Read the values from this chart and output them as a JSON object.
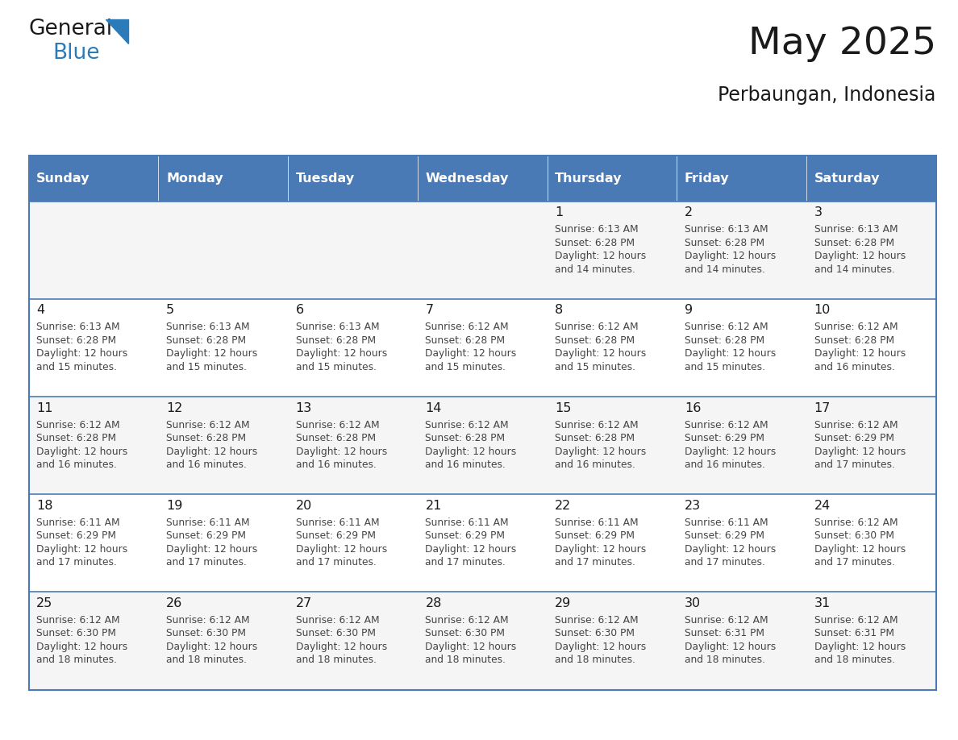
{
  "title": "May 2025",
  "subtitle": "Perbaungan, Indonesia",
  "days_of_week": [
    "Sunday",
    "Monday",
    "Tuesday",
    "Wednesday",
    "Thursday",
    "Friday",
    "Saturday"
  ],
  "header_bg": "#4a7ab5",
  "header_text": "#FFFFFF",
  "row_bg_odd": "#f5f5f5",
  "row_bg_even": "#FFFFFF",
  "border_color": "#4a7ab5",
  "text_color": "#444444",
  "day_num_color": "#1a1a1a",
  "cal_data": [
    [
      null,
      null,
      null,
      null,
      {
        "day": 1,
        "sunrise": "6:13 AM",
        "sunset": "6:28 PM",
        "daylight": "12 hours",
        "daylight2": "and 14 minutes."
      },
      {
        "day": 2,
        "sunrise": "6:13 AM",
        "sunset": "6:28 PM",
        "daylight": "12 hours",
        "daylight2": "and 14 minutes."
      },
      {
        "day": 3,
        "sunrise": "6:13 AM",
        "sunset": "6:28 PM",
        "daylight": "12 hours",
        "daylight2": "and 14 minutes."
      }
    ],
    [
      {
        "day": 4,
        "sunrise": "6:13 AM",
        "sunset": "6:28 PM",
        "daylight": "12 hours",
        "daylight2": "and 15 minutes."
      },
      {
        "day": 5,
        "sunrise": "6:13 AM",
        "sunset": "6:28 PM",
        "daylight": "12 hours",
        "daylight2": "and 15 minutes."
      },
      {
        "day": 6,
        "sunrise": "6:13 AM",
        "sunset": "6:28 PM",
        "daylight": "12 hours",
        "daylight2": "and 15 minutes."
      },
      {
        "day": 7,
        "sunrise": "6:12 AM",
        "sunset": "6:28 PM",
        "daylight": "12 hours",
        "daylight2": "and 15 minutes."
      },
      {
        "day": 8,
        "sunrise": "6:12 AM",
        "sunset": "6:28 PM",
        "daylight": "12 hours",
        "daylight2": "and 15 minutes."
      },
      {
        "day": 9,
        "sunrise": "6:12 AM",
        "sunset": "6:28 PM",
        "daylight": "12 hours",
        "daylight2": "and 15 minutes."
      },
      {
        "day": 10,
        "sunrise": "6:12 AM",
        "sunset": "6:28 PM",
        "daylight": "12 hours",
        "daylight2": "and 16 minutes."
      }
    ],
    [
      {
        "day": 11,
        "sunrise": "6:12 AM",
        "sunset": "6:28 PM",
        "daylight": "12 hours",
        "daylight2": "and 16 minutes."
      },
      {
        "day": 12,
        "sunrise": "6:12 AM",
        "sunset": "6:28 PM",
        "daylight": "12 hours",
        "daylight2": "and 16 minutes."
      },
      {
        "day": 13,
        "sunrise": "6:12 AM",
        "sunset": "6:28 PM",
        "daylight": "12 hours",
        "daylight2": "and 16 minutes."
      },
      {
        "day": 14,
        "sunrise": "6:12 AM",
        "sunset": "6:28 PM",
        "daylight": "12 hours",
        "daylight2": "and 16 minutes."
      },
      {
        "day": 15,
        "sunrise": "6:12 AM",
        "sunset": "6:28 PM",
        "daylight": "12 hours",
        "daylight2": "and 16 minutes."
      },
      {
        "day": 16,
        "sunrise": "6:12 AM",
        "sunset": "6:29 PM",
        "daylight": "12 hours",
        "daylight2": "and 16 minutes."
      },
      {
        "day": 17,
        "sunrise": "6:12 AM",
        "sunset": "6:29 PM",
        "daylight": "12 hours",
        "daylight2": "and 17 minutes."
      }
    ],
    [
      {
        "day": 18,
        "sunrise": "6:11 AM",
        "sunset": "6:29 PM",
        "daylight": "12 hours",
        "daylight2": "and 17 minutes."
      },
      {
        "day": 19,
        "sunrise": "6:11 AM",
        "sunset": "6:29 PM",
        "daylight": "12 hours",
        "daylight2": "and 17 minutes."
      },
      {
        "day": 20,
        "sunrise": "6:11 AM",
        "sunset": "6:29 PM",
        "daylight": "12 hours",
        "daylight2": "and 17 minutes."
      },
      {
        "day": 21,
        "sunrise": "6:11 AM",
        "sunset": "6:29 PM",
        "daylight": "12 hours",
        "daylight2": "and 17 minutes."
      },
      {
        "day": 22,
        "sunrise": "6:11 AM",
        "sunset": "6:29 PM",
        "daylight": "12 hours",
        "daylight2": "and 17 minutes."
      },
      {
        "day": 23,
        "sunrise": "6:11 AM",
        "sunset": "6:29 PM",
        "daylight": "12 hours",
        "daylight2": "and 17 minutes."
      },
      {
        "day": 24,
        "sunrise": "6:12 AM",
        "sunset": "6:30 PM",
        "daylight": "12 hours",
        "daylight2": "and 17 minutes."
      }
    ],
    [
      {
        "day": 25,
        "sunrise": "6:12 AM",
        "sunset": "6:30 PM",
        "daylight": "12 hours",
        "daylight2": "and 18 minutes."
      },
      {
        "day": 26,
        "sunrise": "6:12 AM",
        "sunset": "6:30 PM",
        "daylight": "12 hours",
        "daylight2": "and 18 minutes."
      },
      {
        "day": 27,
        "sunrise": "6:12 AM",
        "sunset": "6:30 PM",
        "daylight": "12 hours",
        "daylight2": "and 18 minutes."
      },
      {
        "day": 28,
        "sunrise": "6:12 AM",
        "sunset": "6:30 PM",
        "daylight": "12 hours",
        "daylight2": "and 18 minutes."
      },
      {
        "day": 29,
        "sunrise": "6:12 AM",
        "sunset": "6:30 PM",
        "daylight": "12 hours",
        "daylight2": "and 18 minutes."
      },
      {
        "day": 30,
        "sunrise": "6:12 AM",
        "sunset": "6:31 PM",
        "daylight": "12 hours",
        "daylight2": "and 18 minutes."
      },
      {
        "day": 31,
        "sunrise": "6:12 AM",
        "sunset": "6:31 PM",
        "daylight": "12 hours",
        "daylight2": "and 18 minutes."
      }
    ]
  ],
  "logo_text1": "General",
  "logo_text2": "Blue",
  "logo_color1": "#1a1a1a",
  "logo_color2": "#2B7BB9",
  "logo_triangle_color": "#2B7BB9",
  "fig_width": 11.88,
  "fig_height": 9.18,
  "dpi": 100
}
